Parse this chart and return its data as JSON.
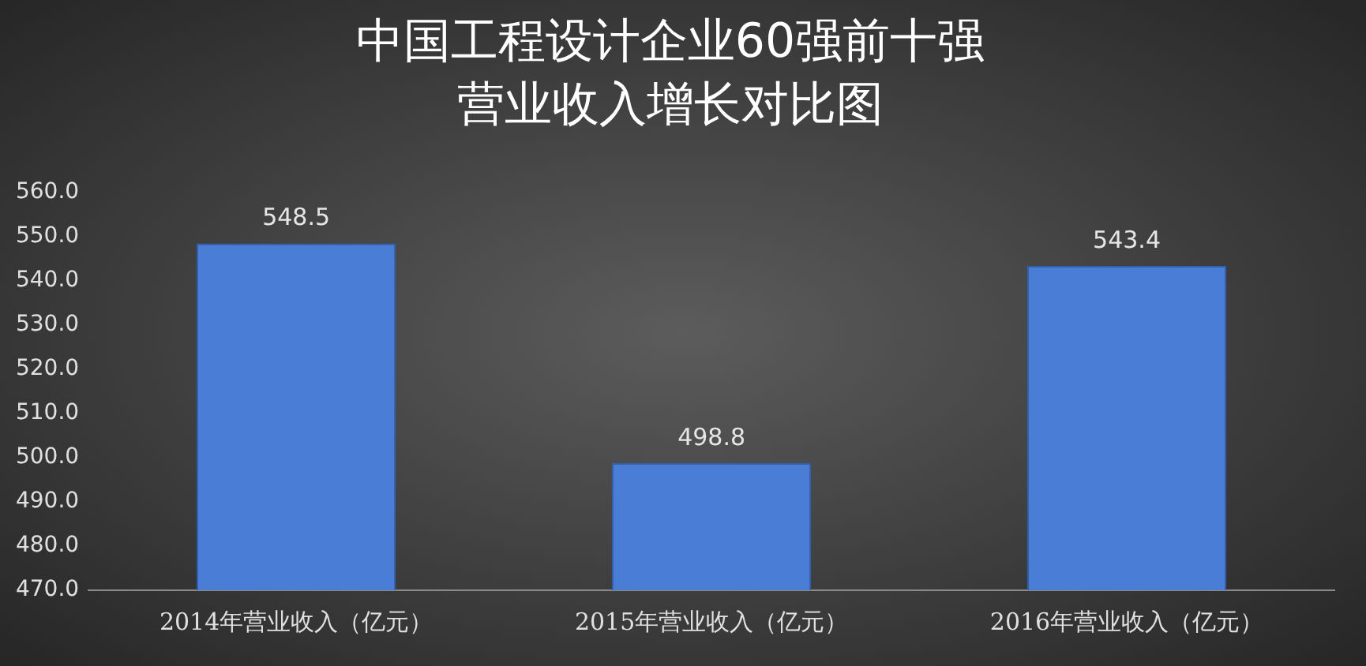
{
  "chart_data": {
    "type": "bar",
    "title": "中国工程设计企业60强前十强",
    "subtitle": "营业收入增长对比图",
    "categories": [
      "2014年营业收入（亿元）",
      "2015年营业收入（亿元）",
      "2016年营业收入（亿元）"
    ],
    "values": [
      548.5,
      498.8,
      543.4
    ],
    "color": "#4a7ed6",
    "ylim": [
      470,
      560
    ],
    "yticks": [
      {
        "value": 470,
        "label": "470.0"
      },
      {
        "value": 480,
        "label": "480.0"
      },
      {
        "value": 490,
        "label": "490.0"
      },
      {
        "value": 500,
        "label": "500.0"
      },
      {
        "value": 510,
        "label": "510.0"
      },
      {
        "value": 520,
        "label": "520.0"
      },
      {
        "value": 530,
        "label": "530.0"
      },
      {
        "value": 540,
        "label": "540.0"
      },
      {
        "value": 550,
        "label": "550.0"
      },
      {
        "value": 560,
        "label": "560.0"
      }
    ],
    "grid": false,
    "legend": false,
    "data_labels": true
  }
}
